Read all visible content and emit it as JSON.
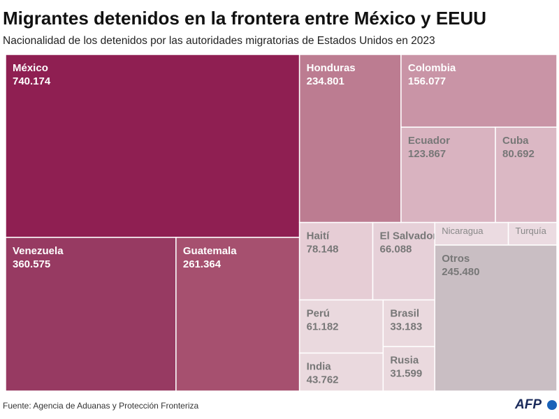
{
  "chart_data": {
    "type": "treemap",
    "title": "Migrantes detenidos en la frontera entre México y EEUU",
    "subtitle": "Nacionalidad de los detenidos por las autoridades migratorias de Estados Unidos en 2023",
    "categories": [
      "México",
      "Venezuela",
      "Guatemala",
      "Honduras",
      "Colombia",
      "Ecuador",
      "Cuba",
      "Haití",
      "El Salvador",
      "Perú",
      "India",
      "Brasil",
      "Rusia",
      "Nicaragua",
      "Turquía",
      "Otros"
    ],
    "values": [
      740174,
      360575,
      261364,
      234801,
      156077,
      123867,
      80692,
      78148,
      66088,
      61182,
      43762,
      33183,
      31599,
      22900,
      15100,
      245480
    ],
    "value_labels": [
      "740.174",
      "360.575",
      "261.364",
      "234.801",
      "156.077",
      "123.867",
      "80.692",
      "78.148",
      "66.088",
      "61.182",
      "43.762",
      "33.183",
      "31.599",
      null,
      null,
      "245.480"
    ],
    "colors": [
      "#8f1f52",
      "#973a62",
      "#a6506f",
      "#bc7c91",
      "#c994a6",
      "#d9b3c0",
      "#dbb8c4",
      "#e6cdd5",
      "#e6d0d8",
      "#ead9de",
      "#ead9de",
      "#ead9de",
      "#ead9de",
      "#ebdbe1",
      "#ebdbe1",
      "#c9bec3"
    ],
    "source": "Fuente: Agencia de Aduanas y Protección Fronteriza",
    "logo": "AFP"
  }
}
